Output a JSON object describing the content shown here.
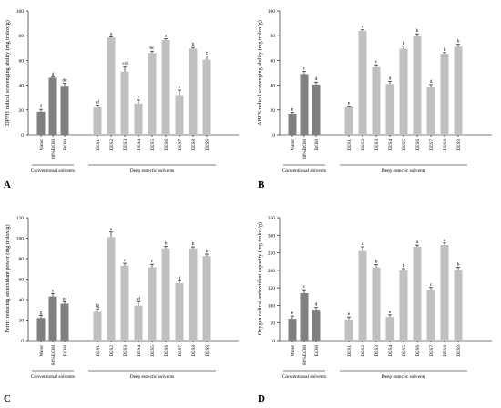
{
  "colors": {
    "conventional": "#808080",
    "des": "#c0c0c0"
  },
  "groups": [
    "Conventional solvents",
    "Deep eutectic solvents"
  ],
  "chart_data": [
    {
      "type": "bar",
      "panel": "A",
      "ylabel": "DPPH radical scavenging ability  (mg trolox/g)",
      "ylim": [
        0,
        100
      ],
      "yticks": [
        0,
        20,
        40,
        60,
        80,
        100
      ],
      "categories": [
        "Water",
        "80%EtOH",
        "EtOH",
        "DES1",
        "DES2",
        "DES3",
        "DES4",
        "DES5",
        "DES6",
        "DES7",
        "DES8",
        "DES9"
      ],
      "values": [
        18.5,
        46,
        39.5,
        22.5,
        78.5,
        51,
        25,
        66,
        76.5,
        32,
        69.5,
        60.5
      ],
      "errors": [
        2,
        0.5,
        2,
        1.5,
        0.6,
        4,
        3,
        1.5,
        1,
        4,
        1,
        3
      ],
      "letters": [
        "f",
        "d",
        "de",
        "ef",
        "a",
        "cd",
        "e",
        "bc",
        "a",
        "e",
        "b",
        "c"
      ]
    },
    {
      "type": "bar",
      "panel": "B",
      "ylabel": "ABTS radical scavenging ability  (mg trolox/g)",
      "ylim": [
        0,
        100
      ],
      "yticks": [
        0,
        20,
        40,
        60,
        80,
        100
      ],
      "categories": [
        "Water",
        "80%EtOH",
        "EtOH",
        "DES1",
        "DES2",
        "DES3",
        "DES4",
        "DES5",
        "DES6",
        "DES7",
        "DES8",
        "DES9"
      ],
      "values": [
        17,
        49,
        40.5,
        22,
        84,
        54.5,
        41,
        69.5,
        79.5,
        38.5,
        65.5,
        71
      ],
      "errors": [
        1,
        2,
        2,
        1,
        0.8,
        2,
        2,
        2,
        2,
        2,
        0.8,
        2
      ],
      "letters": [
        "e",
        "c",
        "d",
        "e",
        "a",
        "c",
        "d",
        "b",
        "b",
        "d",
        "b",
        "b"
      ]
    },
    {
      "type": "bar",
      "panel": "C",
      "ylabel": "Ferric reducing antioxidant power  (mg trolox/g)",
      "ylim": [
        0,
        120
      ],
      "yticks": [
        0,
        20,
        40,
        60,
        80,
        100,
        120
      ],
      "categories": [
        "Water",
        "80%EtOH",
        "EtOH",
        "DES1",
        "DES2",
        "DES3",
        "DES4",
        "DES5",
        "DES6",
        "DES7",
        "DES8",
        "DES9"
      ],
      "values": [
        22,
        43,
        36,
        28,
        101,
        73,
        34,
        71.5,
        90,
        56,
        90,
        82.5
      ],
      "errors": [
        2.5,
        3,
        2,
        3,
        5,
        2.5,
        4,
        3,
        2,
        2,
        1.5,
        2
      ],
      "letters": [
        "g",
        "e",
        "ef",
        "fg",
        "a",
        "c",
        "ef",
        "c",
        "b",
        "d",
        "b",
        "b"
      ]
    },
    {
      "type": "bar",
      "panel": "D",
      "ylabel": "Oxygen radical antioxidant capacity  (mg trolox/g)",
      "ylim": [
        0,
        350
      ],
      "yticks": [
        0,
        50,
        100,
        150,
        200,
        250,
        300,
        350
      ],
      "categories": [
        "Water",
        "80%EtOH",
        "EtOH",
        "DES1",
        "DES2",
        "DES3",
        "DES4",
        "DES5",
        "DES6",
        "DES7",
        "DES8",
        "DES9"
      ],
      "values": [
        62,
        135,
        88,
        60,
        255,
        208,
        67,
        200,
        267,
        145,
        272,
        201
      ],
      "errors": [
        8,
        10,
        6,
        7,
        12,
        8,
        6,
        5,
        5,
        6,
        6,
        8
      ],
      "letters": [
        "e",
        "c",
        "d",
        "e",
        "a",
        "b",
        "e",
        "b",
        "a",
        "c",
        "a",
        "b"
      ]
    }
  ]
}
